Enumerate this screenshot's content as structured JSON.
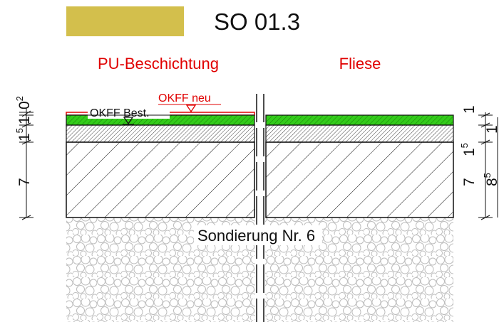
{
  "header": {
    "swatch_color": "#d3bf4c",
    "title": "SO 01.3"
  },
  "columns": {
    "left_title": "PU-Beschichtung",
    "right_title": "Fliese"
  },
  "annotations": {
    "okff_new": "OKFF neu",
    "okff_existing": "OKFF Best.",
    "probe": "Sondierung Nr. 6"
  },
  "dimensions_left": {
    "a_main": "0",
    "a_sup": "2",
    "b_main": "1",
    "c_main": "1",
    "c_sup": "5",
    "d_main": "7"
  },
  "dimensions_right": {
    "a_main": "1",
    "b_main": "1",
    "c_main": "1",
    "c_sup": "5",
    "d_main": "7",
    "e_main": "8",
    "e_sup": "5"
  },
  "colors": {
    "coating_green": "#33cc1a",
    "annotation_red": "#e00000",
    "line_black": "#111111"
  }
}
